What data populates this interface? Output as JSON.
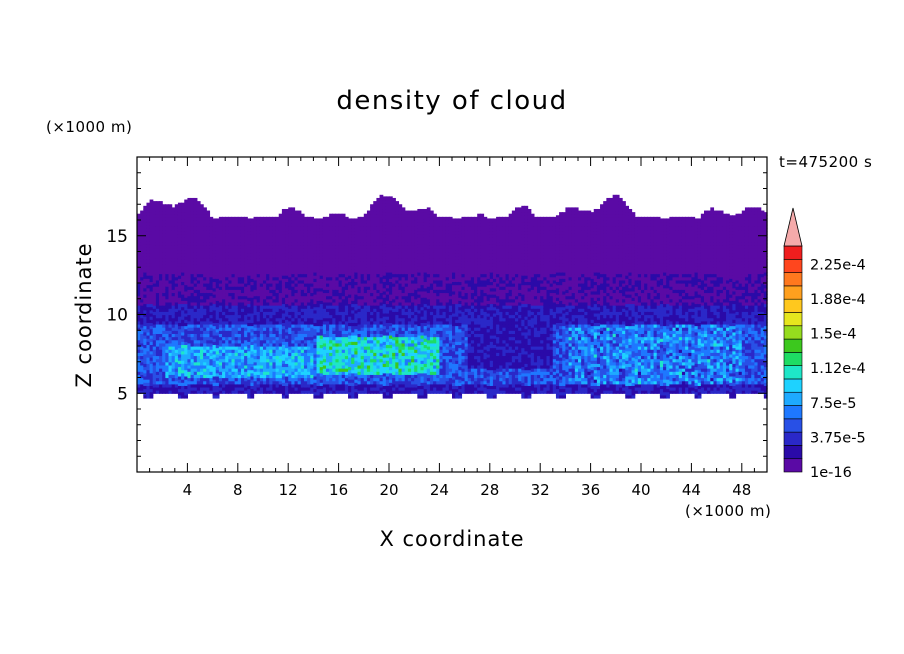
{
  "chart_data": {
    "type": "heatmap",
    "title": "density of cloud",
    "xlabel": "X coordinate",
    "ylabel": "Z coordinate",
    "x_unit": "(×1000 m)",
    "y_unit": "(×1000 m)",
    "time_label": "t=475200 s",
    "xlim": [
      0,
      50
    ],
    "ylim": [
      0,
      20
    ],
    "x_ticks": [
      4,
      8,
      12,
      16,
      20,
      24,
      28,
      32,
      36,
      40,
      44,
      48
    ],
    "y_ticks": [
      5,
      10,
      15
    ],
    "grid": false,
    "colorbar": {
      "levels": [
        "1e-16",
        "3.75e-5",
        "7.5e-5",
        "1.12e-4",
        "1.5e-4",
        "1.88e-4",
        "2.25e-4"
      ],
      "extend": "max",
      "colors": [
        "#5a0aa5",
        "#2a0aa8",
        "#2a28c8",
        "#2850e6",
        "#1e78ff",
        "#1eaaff",
        "#1ed2ff",
        "#1ee6c8",
        "#1edc64",
        "#3cc81e",
        "#96dc1e",
        "#e6e61e",
        "#ffc81e",
        "#ffa01e",
        "#ff781e",
        "#ff461e",
        "#f01e1e"
      ],
      "extend_color": "#f5aaaa"
    },
    "cloud_layer": {
      "base_km": 5,
      "top_km_range": [
        16,
        17.6
      ],
      "core_band_km": [
        5.5,
        9
      ],
      "max_core_x_km": [
        14,
        24
      ],
      "secondary_core_x_km": [
        34,
        48
      ]
    }
  }
}
